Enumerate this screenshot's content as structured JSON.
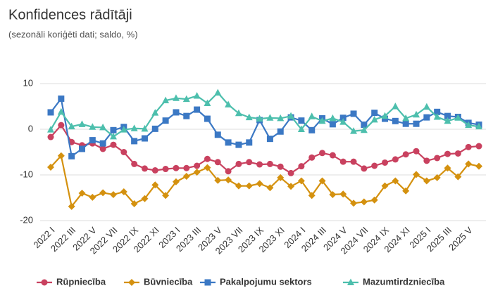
{
  "chart_data": {
    "type": "line",
    "title": "Konfidences rādītāji",
    "subtitle": "(sezonāli koriģēti dati; saldo, %)",
    "categories": [
      "2022 I",
      null,
      "2022 III",
      null,
      "2022 V",
      null,
      "2022 VII",
      null,
      "2022 IX",
      null,
      "2022 XI",
      null,
      "2023 I",
      null,
      "2023 III",
      null,
      "2023 V",
      null,
      "2023 VII",
      null,
      "2023 IX",
      null,
      "2023 XI",
      null,
      "2024 I",
      null,
      "2024 III",
      null,
      "2024 V",
      null,
      "2024 VII",
      null,
      "2024 IX",
      null,
      "2024 XI",
      null,
      "2025 I",
      null,
      "2025 III",
      null,
      "2025 V",
      null
    ],
    "series": [
      {
        "name": "Rūpniecība",
        "color": "#c9415f",
        "marker": "circle",
        "values": [
          -1.7,
          0.9,
          -2.8,
          -3.5,
          -3.1,
          -4.3,
          -3.4,
          -5.0,
          -7.6,
          -8.6,
          -9.0,
          -8.7,
          -8.5,
          -8.5,
          -8.0,
          -6.5,
          -7.2,
          -9.2,
          -7.6,
          -7.2,
          -7.7,
          -7.6,
          -8.2,
          -9.6,
          -8.1,
          -6.2,
          -5.2,
          -5.7,
          -7.1,
          -7.1,
          -8.6,
          -8.0,
          -7.3,
          -6.6,
          -5.5,
          -4.8,
          -6.9,
          -6.3,
          -5.4,
          -5.3,
          -3.9,
          -3.7
        ]
      },
      {
        "name": "Būvniecība",
        "color": "#d4910f",
        "marker": "diamond",
        "values": [
          -8.3,
          -5.8,
          -16.9,
          -14.0,
          -14.9,
          -13.9,
          -14.3,
          -13.7,
          -16.3,
          -15.2,
          -12.2,
          -14.5,
          -11.5,
          -10.3,
          -9.4,
          -8.4,
          -11.2,
          -11.1,
          -12.4,
          -12.4,
          -11.9,
          -12.8,
          -10.6,
          -12.5,
          -11.3,
          -14.5,
          -11.3,
          -14.3,
          -14.2,
          -16.2,
          -15.9,
          -15.5,
          -12.4,
          -11.3,
          -13.5,
          -9.9,
          -11.3,
          -10.6,
          -8.5,
          -10.4,
          -7.6,
          -8.1
        ]
      },
      {
        "name": "Pakalpojumu sektors",
        "color": "#3b78c4",
        "marker": "square",
        "values": [
          3.7,
          6.7,
          -5.9,
          -4.3,
          -2.4,
          -3.1,
          -0.2,
          0.5,
          -2.6,
          -2.0,
          0.1,
          1.9,
          3.7,
          2.9,
          4.3,
          2.3,
          -1.2,
          -2.9,
          -3.4,
          -2.9,
          2.0,
          -2.1,
          -0.5,
          2.6,
          1.9,
          -0.2,
          2.4,
          1.1,
          2.5,
          3.4,
          1.0,
          3.6,
          2.3,
          1.8,
          1.2,
          1.2,
          2.6,
          3.8,
          2.9,
          2.7,
          1.4,
          1.0
        ]
      },
      {
        "name": "Mazumtirdzniecība",
        "color": "#4dbfad",
        "marker": "triangle",
        "values": [
          -0.1,
          3.8,
          0.6,
          1.1,
          0.5,
          0.4,
          -1.6,
          -0.1,
          0.2,
          0.1,
          3.6,
          6.3,
          6.8,
          6.6,
          7.3,
          5.7,
          8.0,
          5.4,
          3.5,
          2.6,
          2.3,
          2.5,
          2.4,
          2.9,
          0.0,
          2.8,
          1.8,
          2.4,
          1.6,
          -0.4,
          -0.2,
          2.1,
          2.9,
          5.0,
          2.4,
          3.2,
          4.9,
          2.7,
          1.8,
          2.5,
          0.9,
          0.6
        ]
      }
    ],
    "ylim": [
      -20,
      10
    ],
    "yticks": [
      -20,
      -10,
      0,
      10
    ],
    "grid": true,
    "legend": "bottom"
  }
}
